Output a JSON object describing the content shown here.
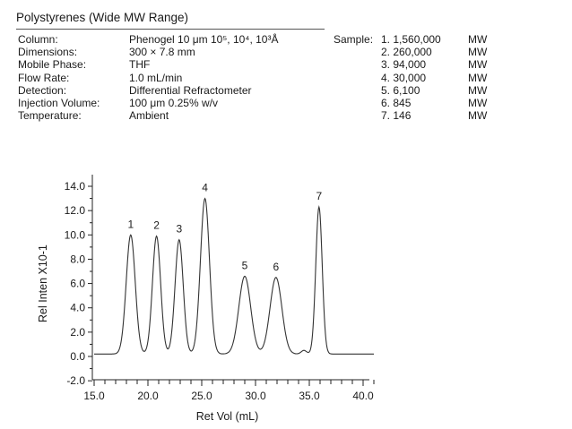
{
  "title": "Polystyrenes (Wide MW Range)",
  "conditions": [
    {
      "label": "Column:",
      "value": "Phenogel 10 μm 10⁵, 10⁴, 10³Å"
    },
    {
      "label": "Dimensions:",
      "value": "300 × 7.8 mm"
    },
    {
      "label": "Mobile Phase:",
      "value": "THF"
    },
    {
      "label": "Flow Rate:",
      "value": "1.0 mL/min"
    },
    {
      "label": "Detection:",
      "value": "Differential Refractometer"
    },
    {
      "label": "Injection Volume:",
      "value": "100 μm 0.25% w/v"
    },
    {
      "label": "Temperature:",
      "value": "Ambient"
    }
  ],
  "sample": {
    "heading": "Sample:",
    "items": [
      {
        "mw": "1. 1,560,000",
        "unit": "MW"
      },
      {
        "mw": "2. 260,000",
        "unit": "MW"
      },
      {
        "mw": "3. 94,000",
        "unit": "MW"
      },
      {
        "mw": "4. 30,000",
        "unit": "MW"
      },
      {
        "mw": "5. 6,100",
        "unit": "MW"
      },
      {
        "mw": "6. 845",
        "unit": "MW"
      },
      {
        "mw": "7. 146",
        "unit": "MW"
      }
    ]
  },
  "chart_data": {
    "type": "line",
    "title": "",
    "xlabel": "Ret Vol (mL)",
    "ylabel": "Rel Inten X10-1",
    "xlim": [
      15.0,
      41.5
    ],
    "ylim": [
      -2.0,
      14.8
    ],
    "x_ticks": [
      "15.0",
      "20.0",
      "25.0",
      "30.0",
      "35.0",
      "40.0"
    ],
    "x_tick_values": [
      15,
      20,
      25,
      30,
      35,
      40
    ],
    "y_ticks": [
      "-2.0",
      "0.0",
      "2.0",
      "4.0",
      "6.0",
      "8.0",
      "10.0",
      "12.0",
      "14.0"
    ],
    "y_tick_values": [
      -2,
      0,
      2,
      4,
      6,
      8,
      10,
      12,
      14
    ],
    "grid": false,
    "baseline": 0.2,
    "x_start": 15.0,
    "x_end": 41.0,
    "peaks": [
      {
        "label": "1",
        "x": 18.4,
        "y": 10.0
      },
      {
        "label": "2",
        "x": 20.8,
        "y": 9.9
      },
      {
        "label": "3",
        "x": 22.9,
        "y": 9.6
      },
      {
        "label": "4",
        "x": 25.3,
        "y": 13.0
      },
      {
        "label": "5",
        "x": 29.0,
        "y": 6.6
      },
      {
        "label": "6",
        "x": 31.9,
        "y": 6.5
      },
      {
        "label": "7",
        "x": 35.9,
        "y": 12.3
      }
    ]
  }
}
